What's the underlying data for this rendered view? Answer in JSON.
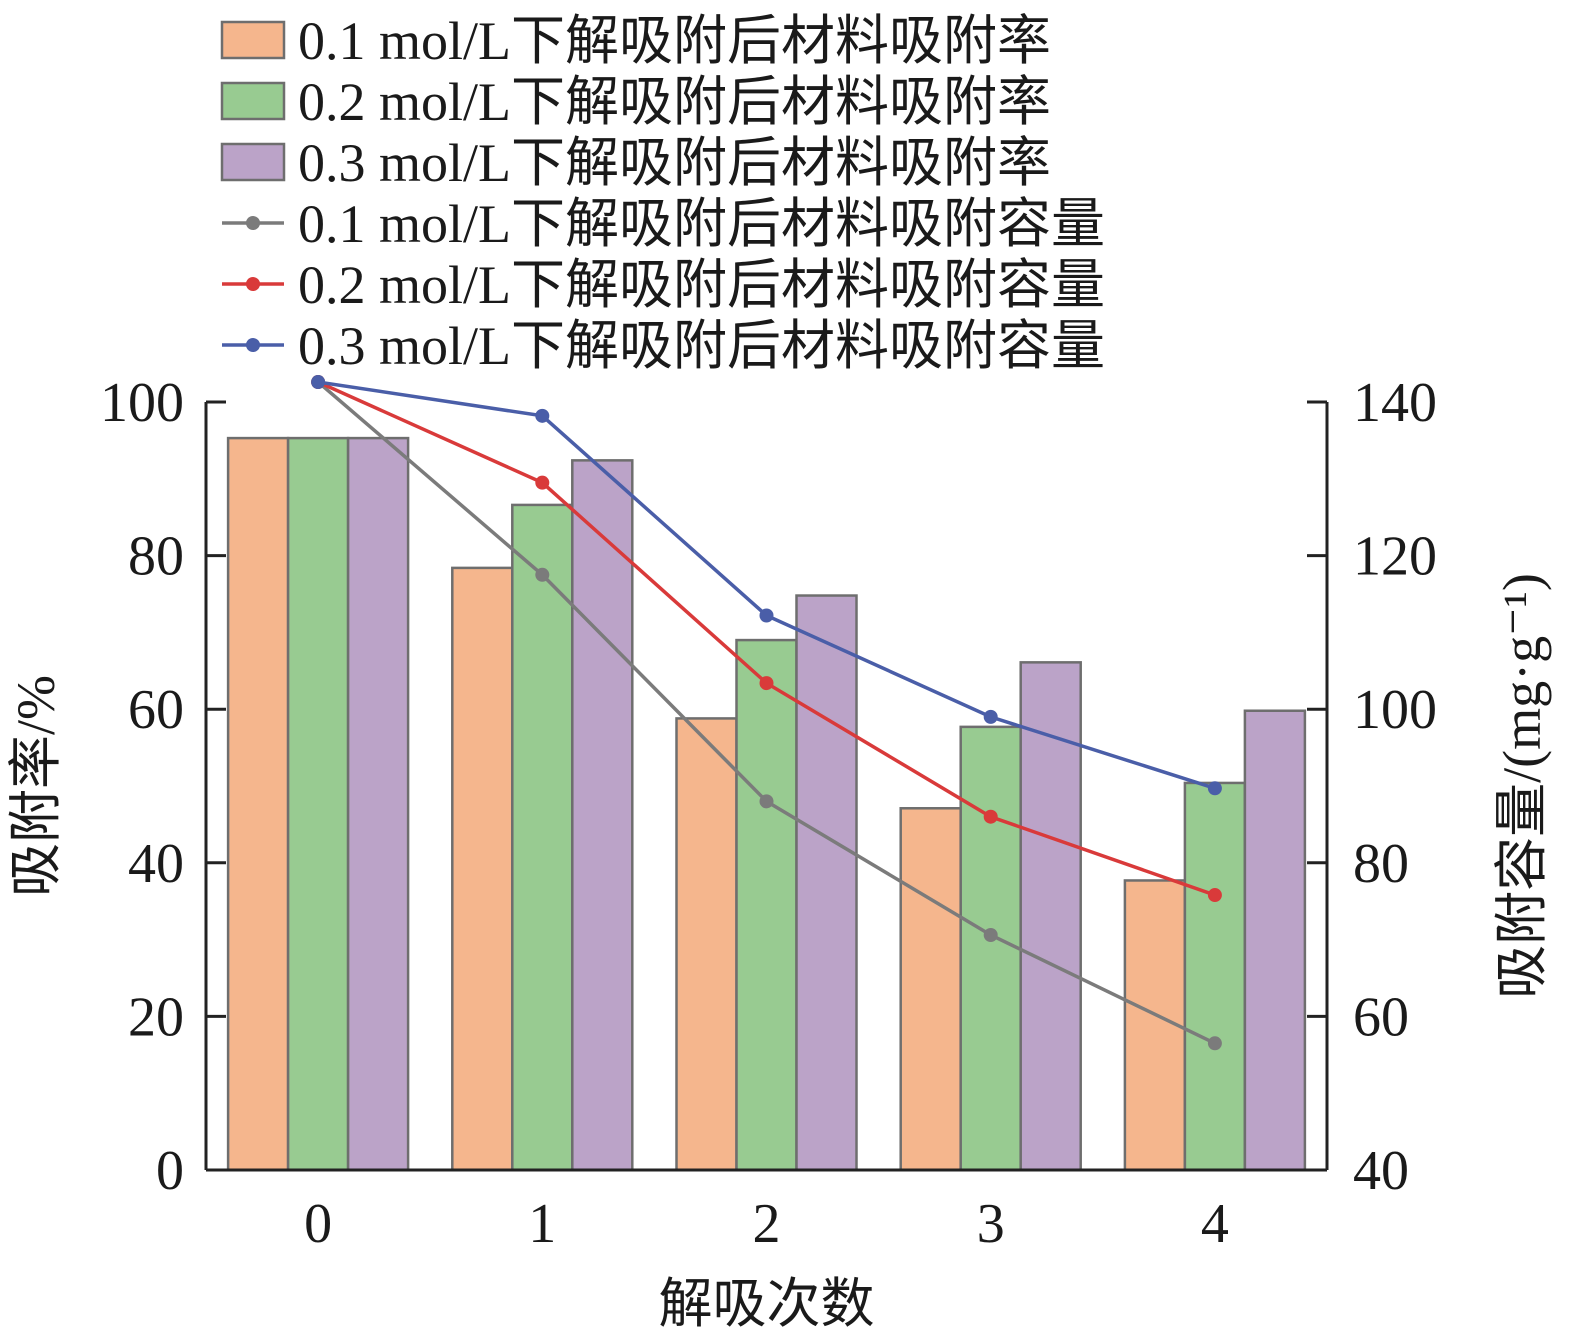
{
  "chart_data": {
    "type": "bar",
    "categories": [
      "0",
      "1",
      "2",
      "3",
      "4"
    ],
    "xlabel": "解吸次数",
    "ylabel": "吸附率/%",
    "y2label": "吸附容量/(mg·g⁻¹)",
    "ylim": [
      0,
      100
    ],
    "y2lim": [
      40,
      140
    ],
    "yticks": [
      "0",
      "20",
      "40",
      "60",
      "80",
      "100"
    ],
    "y2ticks": [
      "40",
      "60",
      "80",
      "100",
      "120",
      "140"
    ],
    "bar_series": [
      {
        "name": "0.1 mol/L下解吸附后材料吸附率",
        "color": "#f5b68d",
        "values": [
          95.3,
          78.4,
          58.8,
          47.1,
          37.7
        ]
      },
      {
        "name": "0.2 mol/L下解吸附后材料吸附率",
        "color": "#98cb91",
        "values": [
          95.3,
          86.6,
          69.0,
          57.7,
          50.4
        ]
      },
      {
        "name": "0.3 mol/L下解吸附后材料吸附率",
        "color": "#bba3c8",
        "values": [
          95.3,
          92.4,
          74.8,
          66.1,
          59.8
        ]
      }
    ],
    "line_series": [
      {
        "name": "0.1 mol/L下解吸附后材料吸附容量",
        "color": "#7b7b7b",
        "axis": "right",
        "values": [
          142.6,
          117.5,
          88.0,
          70.6,
          56.5
        ]
      },
      {
        "name": "0.2 mol/L下解吸附后材料吸附容量",
        "color": "#d93a3a",
        "axis": "right",
        "values": [
          142.6,
          129.5,
          103.4,
          86.0,
          75.8
        ]
      },
      {
        "name": "0.3 mol/L下解吸附后材料吸附容量",
        "color": "#4a5ea8",
        "axis": "right",
        "values": [
          142.6,
          138.2,
          112.2,
          99.0,
          89.7
        ]
      }
    ],
    "legend_position": "top"
  }
}
